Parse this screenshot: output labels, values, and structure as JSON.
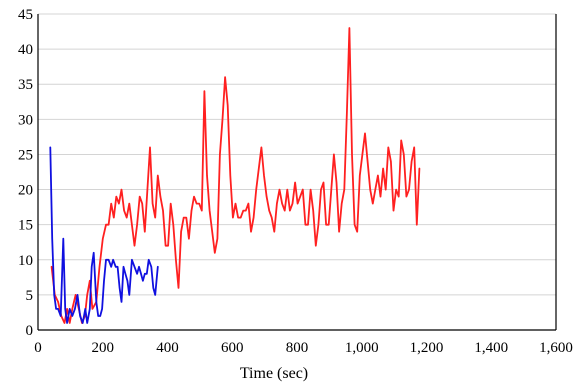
{
  "chart_data": {
    "type": "line",
    "title": "",
    "xlabel": "Time (sec)",
    "ylabel": "",
    "xlim": [
      0,
      1600
    ],
    "ylim": [
      0,
      45
    ],
    "x_ticks": [
      0,
      200,
      400,
      600,
      800,
      1000,
      1200,
      1400,
      1600
    ],
    "x_tick_labels": [
      "0",
      "200",
      "400",
      "600",
      "800",
      "1,000",
      "1,200",
      "1,400",
      "1,600"
    ],
    "y_ticks": [
      0,
      5,
      10,
      15,
      20,
      25,
      30,
      35,
      40,
      45
    ],
    "y_tick_labels": [
      "0",
      "5",
      "10",
      "15",
      "20",
      "25",
      "30",
      "35",
      "40",
      "45"
    ],
    "grid": "horizontal",
    "legend": "none",
    "series": [
      {
        "color": "#ff2020",
        "points": [
          [
            42,
            9
          ],
          [
            52,
            5
          ],
          [
            62,
            4
          ],
          [
            72,
            2
          ],
          [
            82,
            1
          ],
          [
            90,
            3
          ],
          [
            98,
            1
          ],
          [
            106,
            3
          ],
          [
            116,
            5
          ],
          [
            126,
            3
          ],
          [
            136,
            1
          ],
          [
            145,
            2
          ],
          [
            152,
            5
          ],
          [
            160,
            7
          ],
          [
            168,
            3
          ],
          [
            180,
            4
          ],
          [
            190,
            9
          ],
          [
            200,
            13
          ],
          [
            210,
            15
          ],
          [
            218,
            15
          ],
          [
            226,
            18
          ],
          [
            234,
            16
          ],
          [
            242,
            19
          ],
          [
            250,
            18
          ],
          [
            258,
            20
          ],
          [
            266,
            17
          ],
          [
            274,
            16
          ],
          [
            282,
            18
          ],
          [
            290,
            15
          ],
          [
            298,
            12
          ],
          [
            306,
            15
          ],
          [
            314,
            19
          ],
          [
            322,
            18
          ],
          [
            330,
            14
          ],
          [
            338,
            20
          ],
          [
            346,
            26
          ],
          [
            354,
            18
          ],
          [
            362,
            16
          ],
          [
            370,
            22
          ],
          [
            378,
            19
          ],
          [
            386,
            17
          ],
          [
            394,
            12
          ],
          [
            402,
            12
          ],
          [
            410,
            18
          ],
          [
            418,
            15
          ],
          [
            426,
            10
          ],
          [
            434,
            6
          ],
          [
            442,
            14
          ],
          [
            450,
            16
          ],
          [
            458,
            16
          ],
          [
            466,
            13
          ],
          [
            474,
            17
          ],
          [
            482,
            19
          ],
          [
            490,
            18
          ],
          [
            498,
            18
          ],
          [
            506,
            17
          ],
          [
            514,
            34
          ],
          [
            522,
            22
          ],
          [
            530,
            17
          ],
          [
            538,
            14
          ],
          [
            546,
            11
          ],
          [
            554,
            13
          ],
          [
            562,
            25
          ],
          [
            570,
            30
          ],
          [
            578,
            36
          ],
          [
            586,
            32
          ],
          [
            594,
            22
          ],
          [
            602,
            16
          ],
          [
            610,
            18
          ],
          [
            618,
            16
          ],
          [
            626,
            16
          ],
          [
            634,
            17
          ],
          [
            642,
            17
          ],
          [
            650,
            18
          ],
          [
            658,
            14
          ],
          [
            666,
            16
          ],
          [
            674,
            20
          ],
          [
            682,
            23
          ],
          [
            690,
            26
          ],
          [
            698,
            22
          ],
          [
            706,
            19
          ],
          [
            714,
            17
          ],
          [
            722,
            16
          ],
          [
            730,
            14
          ],
          [
            738,
            18
          ],
          [
            746,
            20
          ],
          [
            754,
            18
          ],
          [
            762,
            17
          ],
          [
            770,
            20
          ],
          [
            778,
            17
          ],
          [
            786,
            18
          ],
          [
            794,
            21
          ],
          [
            802,
            18
          ],
          [
            810,
            19
          ],
          [
            818,
            20
          ],
          [
            826,
            15
          ],
          [
            834,
            15
          ],
          [
            842,
            20
          ],
          [
            850,
            17
          ],
          [
            858,
            12
          ],
          [
            866,
            15
          ],
          [
            874,
            20
          ],
          [
            882,
            21
          ],
          [
            890,
            15
          ],
          [
            898,
            15
          ],
          [
            906,
            20
          ],
          [
            914,
            25
          ],
          [
            922,
            21
          ],
          [
            930,
            14
          ],
          [
            938,
            18
          ],
          [
            946,
            20
          ],
          [
            954,
            31
          ],
          [
            962,
            43
          ],
          [
            970,
            25
          ],
          [
            978,
            15
          ],
          [
            986,
            14
          ],
          [
            994,
            22
          ],
          [
            1002,
            25
          ],
          [
            1010,
            28
          ],
          [
            1018,
            24
          ],
          [
            1026,
            20
          ],
          [
            1034,
            18
          ],
          [
            1042,
            20
          ],
          [
            1050,
            22
          ],
          [
            1058,
            19
          ],
          [
            1066,
            23
          ],
          [
            1074,
            20
          ],
          [
            1082,
            26
          ],
          [
            1090,
            24
          ],
          [
            1098,
            17
          ],
          [
            1106,
            20
          ],
          [
            1114,
            19
          ],
          [
            1122,
            27
          ],
          [
            1130,
            25
          ],
          [
            1138,
            19
          ],
          [
            1146,
            20
          ],
          [
            1154,
            24
          ],
          [
            1162,
            26
          ],
          [
            1170,
            15
          ],
          [
            1178,
            23
          ]
        ]
      },
      {
        "color": "#1010e0",
        "points": [
          [
            38,
            26
          ],
          [
            44,
            13
          ],
          [
            50,
            5
          ],
          [
            56,
            3
          ],
          [
            62,
            3
          ],
          [
            70,
            2
          ],
          [
            78,
            13
          ],
          [
            84,
            3
          ],
          [
            90,
            1
          ],
          [
            98,
            3
          ],
          [
            106,
            2
          ],
          [
            114,
            3
          ],
          [
            122,
            5
          ],
          [
            130,
            2
          ],
          [
            138,
            1
          ],
          [
            146,
            3
          ],
          [
            152,
            1
          ],
          [
            160,
            3
          ],
          [
            166,
            9
          ],
          [
            172,
            11
          ],
          [
            180,
            4
          ],
          [
            186,
            2
          ],
          [
            192,
            2
          ],
          [
            198,
            3
          ],
          [
            204,
            7
          ],
          [
            210,
            10
          ],
          [
            218,
            10
          ],
          [
            226,
            9
          ],
          [
            232,
            10
          ],
          [
            240,
            9
          ],
          [
            246,
            9
          ],
          [
            252,
            6
          ],
          [
            258,
            4
          ],
          [
            264,
            9
          ],
          [
            270,
            8
          ],
          [
            276,
            7
          ],
          [
            282,
            5
          ],
          [
            290,
            10
          ],
          [
            298,
            9
          ],
          [
            306,
            8
          ],
          [
            312,
            9
          ],
          [
            318,
            8
          ],
          [
            324,
            7
          ],
          [
            330,
            8
          ],
          [
            336,
            8
          ],
          [
            342,
            10
          ],
          [
            350,
            9
          ],
          [
            356,
            6
          ],
          [
            362,
            5
          ],
          [
            370,
            9
          ]
        ]
      }
    ]
  }
}
